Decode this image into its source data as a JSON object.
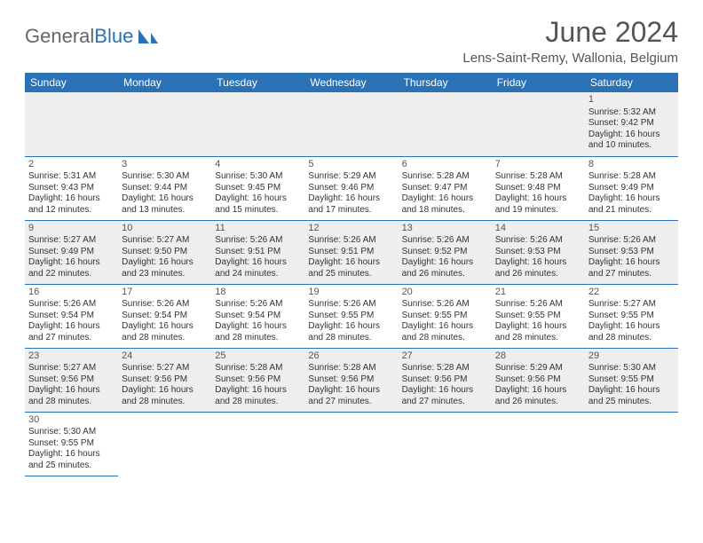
{
  "logo": {
    "text_gray": "General",
    "text_blue": "Blue"
  },
  "header": {
    "title": "June 2024",
    "subtitle": "Lens-Saint-Remy, Wallonia, Belgium"
  },
  "colors": {
    "header_bg": "#2a72b5",
    "header_fg": "#ffffff",
    "row_odd_bg": "#eeeeee",
    "row_even_bg": "#ffffff",
    "divider": "#2a72b5",
    "text": "#333333"
  },
  "weekdays": [
    "Sunday",
    "Monday",
    "Tuesday",
    "Wednesday",
    "Thursday",
    "Friday",
    "Saturday"
  ],
  "weeks": [
    [
      null,
      null,
      null,
      null,
      null,
      null,
      {
        "d": "1",
        "sr": "5:32 AM",
        "ss": "9:42 PM",
        "dl": "16 hours and 10 minutes."
      }
    ],
    [
      {
        "d": "2",
        "sr": "5:31 AM",
        "ss": "9:43 PM",
        "dl": "16 hours and 12 minutes."
      },
      {
        "d": "3",
        "sr": "5:30 AM",
        "ss": "9:44 PM",
        "dl": "16 hours and 13 minutes."
      },
      {
        "d": "4",
        "sr": "5:30 AM",
        "ss": "9:45 PM",
        "dl": "16 hours and 15 minutes."
      },
      {
        "d": "5",
        "sr": "5:29 AM",
        "ss": "9:46 PM",
        "dl": "16 hours and 17 minutes."
      },
      {
        "d": "6",
        "sr": "5:28 AM",
        "ss": "9:47 PM",
        "dl": "16 hours and 18 minutes."
      },
      {
        "d": "7",
        "sr": "5:28 AM",
        "ss": "9:48 PM",
        "dl": "16 hours and 19 minutes."
      },
      {
        "d": "8",
        "sr": "5:28 AM",
        "ss": "9:49 PM",
        "dl": "16 hours and 21 minutes."
      }
    ],
    [
      {
        "d": "9",
        "sr": "5:27 AM",
        "ss": "9:49 PM",
        "dl": "16 hours and 22 minutes."
      },
      {
        "d": "10",
        "sr": "5:27 AM",
        "ss": "9:50 PM",
        "dl": "16 hours and 23 minutes."
      },
      {
        "d": "11",
        "sr": "5:26 AM",
        "ss": "9:51 PM",
        "dl": "16 hours and 24 minutes."
      },
      {
        "d": "12",
        "sr": "5:26 AM",
        "ss": "9:51 PM",
        "dl": "16 hours and 25 minutes."
      },
      {
        "d": "13",
        "sr": "5:26 AM",
        "ss": "9:52 PM",
        "dl": "16 hours and 26 minutes."
      },
      {
        "d": "14",
        "sr": "5:26 AM",
        "ss": "9:53 PM",
        "dl": "16 hours and 26 minutes."
      },
      {
        "d": "15",
        "sr": "5:26 AM",
        "ss": "9:53 PM",
        "dl": "16 hours and 27 minutes."
      }
    ],
    [
      {
        "d": "16",
        "sr": "5:26 AM",
        "ss": "9:54 PM",
        "dl": "16 hours and 27 minutes."
      },
      {
        "d": "17",
        "sr": "5:26 AM",
        "ss": "9:54 PM",
        "dl": "16 hours and 28 minutes."
      },
      {
        "d": "18",
        "sr": "5:26 AM",
        "ss": "9:54 PM",
        "dl": "16 hours and 28 minutes."
      },
      {
        "d": "19",
        "sr": "5:26 AM",
        "ss": "9:55 PM",
        "dl": "16 hours and 28 minutes."
      },
      {
        "d": "20",
        "sr": "5:26 AM",
        "ss": "9:55 PM",
        "dl": "16 hours and 28 minutes."
      },
      {
        "d": "21",
        "sr": "5:26 AM",
        "ss": "9:55 PM",
        "dl": "16 hours and 28 minutes."
      },
      {
        "d": "22",
        "sr": "5:27 AM",
        "ss": "9:55 PM",
        "dl": "16 hours and 28 minutes."
      }
    ],
    [
      {
        "d": "23",
        "sr": "5:27 AM",
        "ss": "9:56 PM",
        "dl": "16 hours and 28 minutes."
      },
      {
        "d": "24",
        "sr": "5:27 AM",
        "ss": "9:56 PM",
        "dl": "16 hours and 28 minutes."
      },
      {
        "d": "25",
        "sr": "5:28 AM",
        "ss": "9:56 PM",
        "dl": "16 hours and 28 minutes."
      },
      {
        "d": "26",
        "sr": "5:28 AM",
        "ss": "9:56 PM",
        "dl": "16 hours and 27 minutes."
      },
      {
        "d": "27",
        "sr": "5:28 AM",
        "ss": "9:56 PM",
        "dl": "16 hours and 27 minutes."
      },
      {
        "d": "28",
        "sr": "5:29 AM",
        "ss": "9:56 PM",
        "dl": "16 hours and 26 minutes."
      },
      {
        "d": "29",
        "sr": "5:30 AM",
        "ss": "9:55 PM",
        "dl": "16 hours and 25 minutes."
      }
    ],
    [
      {
        "d": "30",
        "sr": "5:30 AM",
        "ss": "9:55 PM",
        "dl": "16 hours and 25 minutes."
      },
      null,
      null,
      null,
      null,
      null,
      null
    ]
  ],
  "labels": {
    "sunrise": "Sunrise: ",
    "sunset": "Sunset: ",
    "daylight": "Daylight: "
  }
}
